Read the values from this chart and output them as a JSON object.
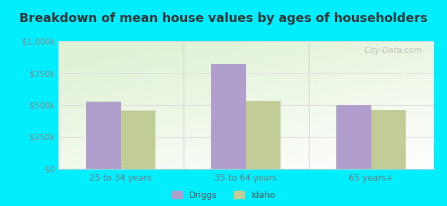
{
  "title": "Breakdown of mean house values by ages of householders",
  "categories": [
    "25 to 34 years",
    "35 to 64 years",
    "65 years+"
  ],
  "driggs_values": [
    525000,
    825000,
    500000
  ],
  "idaho_values": [
    455000,
    530000,
    460000
  ],
  "driggs_color": "#b09fcc",
  "idaho_color": "#c2cc96",
  "ylim": [
    0,
    1000000
  ],
  "yticks": [
    0,
    250000,
    500000,
    750000,
    1000000
  ],
  "ytick_labels": [
    "$0",
    "$250k",
    "$500k",
    "$750k",
    "$1,000k"
  ],
  "background_color": "#00eeff",
  "legend_labels": [
    "Driggs",
    "Idaho"
  ],
  "bar_width": 0.28,
  "title_fontsize": 13,
  "watermark": "City-Data.com"
}
